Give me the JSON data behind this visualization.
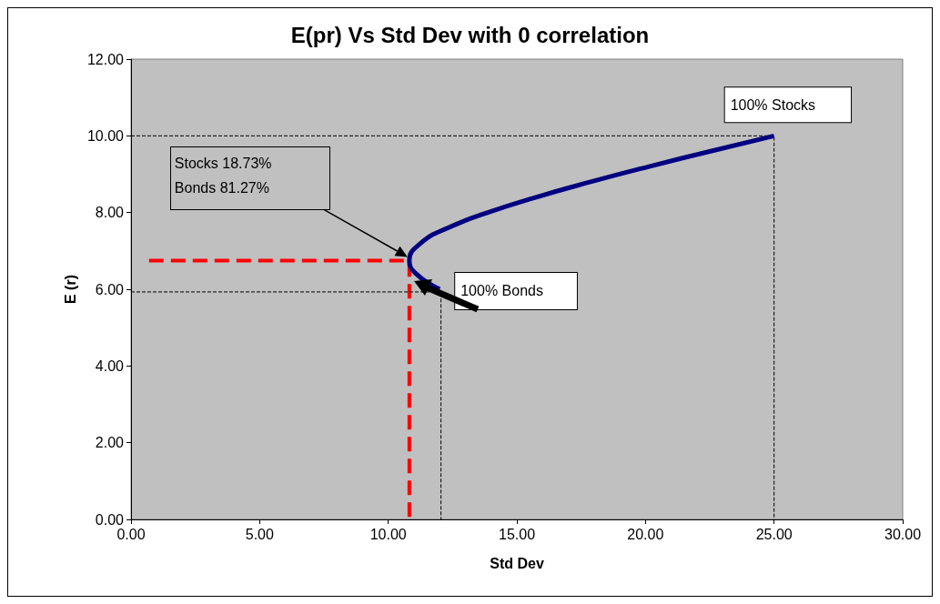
{
  "chart_data": {
    "type": "line",
    "title": "E(pr) Vs Std Dev with 0 correlation",
    "xlabel": "Std Dev",
    "ylabel": "E (r)",
    "xlim": [
      0,
      30
    ],
    "ylim": [
      0,
      12
    ],
    "xticks": [
      {
        "value": 0,
        "label": "0.00"
      },
      {
        "value": 5,
        "label": "5.00"
      },
      {
        "value": 10,
        "label": "10.00"
      },
      {
        "value": 15,
        "label": "15.00"
      },
      {
        "value": 20,
        "label": "20.00"
      },
      {
        "value": 25,
        "label": "25.00"
      },
      {
        "value": 30,
        "label": "30.00"
      }
    ],
    "yticks": [
      {
        "value": 0,
        "label": "0.00"
      },
      {
        "value": 2,
        "label": "2.00"
      },
      {
        "value": 4,
        "label": "4.00"
      },
      {
        "value": 6,
        "label": "6.00"
      },
      {
        "value": 8,
        "label": "8.00"
      },
      {
        "value": 10,
        "label": "10.00"
      },
      {
        "value": 12,
        "label": "12.00"
      }
    ],
    "grid": false,
    "marker": "none",
    "series": [
      {
        "color": "#000080",
        "line_style": "solid",
        "x": [
          12,
          11.09,
          10.82,
          11.26,
          12.32,
          13.87,
          15.75,
          17.87,
          20.14,
          22.53,
          25
        ],
        "values": [
          6,
          6.4,
          6.75,
          7.2,
          7.6,
          8,
          8.4,
          8.8,
          9.2,
          9.6,
          10
        ]
      },
      {
        "color": "#000000",
        "line_style": "dashed",
        "x": [
          0,
          25,
          25
        ],
        "values": [
          10,
          10,
          0
        ]
      },
      {
        "color": "#000000",
        "line_style": "dashed",
        "x": [
          0,
          12.05,
          12.05
        ],
        "values": [
          5.93,
          5.93,
          0
        ]
      },
      {
        "color": "#ff0000",
        "line_style": "dashed",
        "x": [
          0.7,
          10.82,
          10.82
        ],
        "values": [
          6.75,
          6.75,
          0
        ]
      }
    ],
    "annotations": [
      {
        "text": "100% Stocks",
        "x": 25,
        "y": 10
      },
      {
        "text": "100% Bonds",
        "x": 12,
        "y": 6
      },
      "Stocks 18.73%\nBonds 81.27%"
    ]
  }
}
